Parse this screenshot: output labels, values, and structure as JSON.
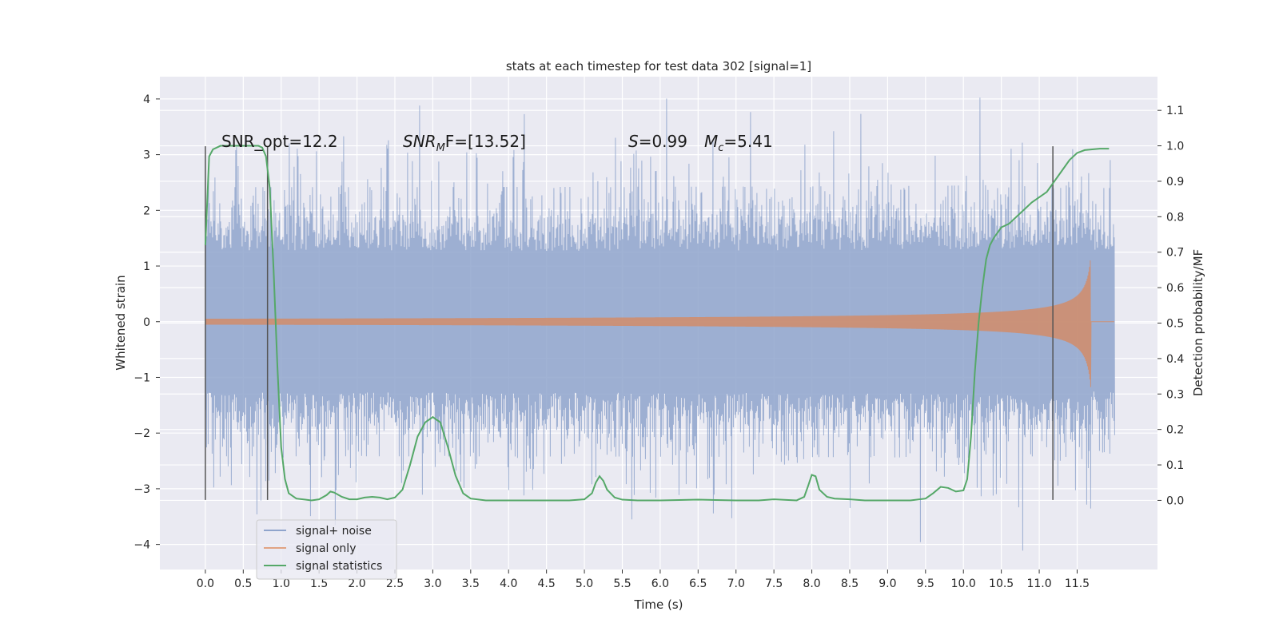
{
  "chart_data": {
    "type": "line",
    "title": "stats at each timestep for test data 302 [signal=1]",
    "xlabel": "Time (s)",
    "ylabel": "Whitened strain",
    "ylabel_right": "Detection probability/MF",
    "xlim": [
      -0.6,
      12.56
    ],
    "ylim": [
      -4.45,
      4.4
    ],
    "ylim_right": [
      -0.195,
      1.195
    ],
    "x_ticks": [
      0.0,
      0.5,
      1.0,
      1.5,
      2.0,
      2.5,
      3.0,
      3.5,
      4.0,
      4.5,
      5.0,
      5.5,
      6.0,
      6.5,
      7.0,
      7.5,
      8.0,
      8.5,
      9.0,
      9.5,
      10.0,
      10.5,
      11.0,
      11.5
    ],
    "x_tick_labels": [
      "0.0",
      "0.5",
      "1.0",
      "1.5",
      "2.0",
      "2.5",
      "3.0",
      "3.5",
      "4.0",
      "4.5",
      "5.0",
      "5.5",
      "6.0",
      "6.5",
      "7.0",
      "7.5",
      "8.0",
      "8.5",
      "9.0",
      "9.5",
      "10.0",
      "10.5",
      "11.0",
      "11.5"
    ],
    "y_ticks": [
      -4,
      -3,
      -2,
      -1,
      0,
      1,
      2,
      3,
      4
    ],
    "y_tick_labels": [
      "−4",
      "−3",
      "−2",
      "−1",
      "0",
      "1",
      "2",
      "3",
      "4"
    ],
    "y_ticks_right": [
      0.0,
      0.1,
      0.2,
      0.3,
      0.4,
      0.5,
      0.6,
      0.7,
      0.8,
      0.9,
      1.0,
      1.1
    ],
    "y_tick_labels_right": [
      "0.0",
      "0.1",
      "0.2",
      "0.3",
      "0.4",
      "0.5",
      "0.6",
      "0.7",
      "0.8",
      "0.9",
      "1.0",
      "1.1"
    ],
    "grid": true,
    "legend_position": "lower-left",
    "annotations": {
      "snr_opt": "SNR_opt=12.2",
      "snr_mf_main": "SNR",
      "snr_mf_sub": "M",
      "snr_mf_rest": "F=[13.52]",
      "s_main": "S",
      "s_rest": "=0.99",
      "mc_main": "M",
      "mc_sub": "c",
      "mc_rest": "=5.41"
    },
    "vertical_lines": [
      0.0,
      0.82,
      11.18
    ],
    "vertical_line_range": [
      -3.2,
      3.15
    ],
    "colors": {
      "background": "#eaeaf2",
      "grid": "#ffffff",
      "noise": "#8fa4cc",
      "signal": "#dd8452",
      "stats": "#55a868",
      "vline": "#555555"
    },
    "series": [
      {
        "name": "signal+ noise",
        "x_start": 0.0,
        "x_end": 11.99,
        "envelope_max": 2.4,
        "spike_max": 4.0,
        "spike_min": -4.1
      },
      {
        "name": "signal only",
        "x_start": 0.0,
        "x_end": 11.99,
        "merger_time": 11.68,
        "peak_amplitude": 1.2
      },
      {
        "name": "signal statistics",
        "axis": "right",
        "x": [
          0.0,
          0.05,
          0.1,
          0.2,
          0.3,
          0.5,
          0.7,
          0.75,
          0.8,
          0.85,
          0.9,
          0.95,
          1.0,
          1.05,
          1.1,
          1.2,
          1.4,
          1.5,
          1.6,
          1.65,
          1.7,
          1.8,
          1.9,
          2.0,
          2.1,
          2.2,
          2.3,
          2.4,
          2.5,
          2.6,
          2.7,
          2.8,
          2.9,
          3.0,
          3.1,
          3.2,
          3.3,
          3.4,
          3.5,
          3.7,
          4.0,
          4.5,
          4.8,
          5.0,
          5.1,
          5.15,
          5.2,
          5.25,
          5.3,
          5.4,
          5.5,
          5.7,
          6.0,
          6.5,
          7.0,
          7.3,
          7.5,
          7.8,
          7.9,
          7.95,
          8.0,
          8.05,
          8.1,
          8.2,
          8.3,
          8.5,
          8.7,
          9.0,
          9.3,
          9.5,
          9.6,
          9.7,
          9.8,
          9.9,
          10.0,
          10.05,
          10.1,
          10.15,
          10.2,
          10.25,
          10.3,
          10.35,
          10.4,
          10.5,
          10.6,
          10.7,
          10.8,
          10.9,
          11.0,
          11.1,
          11.2,
          11.3,
          11.4,
          11.5,
          11.6,
          11.7,
          11.8,
          11.92
        ],
        "y": [
          0.72,
          0.97,
          0.99,
          1.0,
          1.0,
          1.0,
          1.0,
          0.995,
          0.97,
          0.88,
          0.65,
          0.38,
          0.15,
          0.06,
          0.02,
          0.005,
          0.0,
          0.003,
          0.015,
          0.025,
          0.022,
          0.01,
          0.003,
          0.003,
          0.008,
          0.01,
          0.008,
          0.003,
          0.008,
          0.03,
          0.1,
          0.18,
          0.22,
          0.235,
          0.22,
          0.15,
          0.07,
          0.02,
          0.005,
          0.0,
          0.0,
          0.0,
          0.0,
          0.003,
          0.02,
          0.05,
          0.068,
          0.055,
          0.03,
          0.008,
          0.002,
          0.0,
          0.0,
          0.002,
          0.0,
          0.0,
          0.003,
          0.0,
          0.01,
          0.04,
          0.072,
          0.068,
          0.03,
          0.01,
          0.005,
          0.003,
          0.0,
          0.0,
          0.0,
          0.005,
          0.02,
          0.038,
          0.035,
          0.025,
          0.028,
          0.06,
          0.18,
          0.36,
          0.5,
          0.6,
          0.68,
          0.72,
          0.74,
          0.77,
          0.78,
          0.8,
          0.82,
          0.84,
          0.855,
          0.87,
          0.9,
          0.93,
          0.96,
          0.98,
          0.988,
          0.99,
          0.992,
          0.992
        ]
      }
    ]
  }
}
